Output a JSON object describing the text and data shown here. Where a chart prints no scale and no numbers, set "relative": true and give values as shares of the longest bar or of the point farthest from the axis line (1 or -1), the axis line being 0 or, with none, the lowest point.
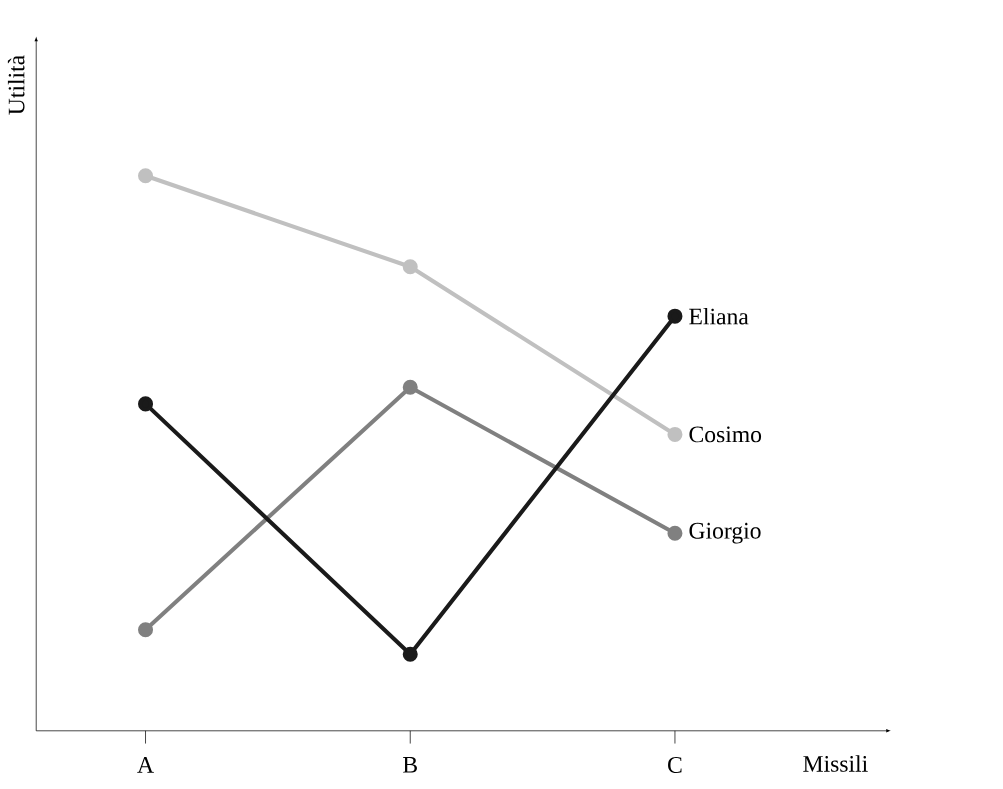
{
  "chart_data": {
    "type": "line",
    "relative": true,
    "xlabel": "Missili",
    "ylabel": "Utilità",
    "categories": [
      "A",
      "B",
      "C"
    ],
    "series": [
      {
        "name": "Cosimo",
        "color": "#c0c0c0",
        "values": [
          1.0,
          0.836,
          0.534
        ]
      },
      {
        "name": "Giorgio",
        "color": "#808080",
        "values": [
          0.182,
          0.619,
          0.356
        ]
      },
      {
        "name": "Eliana",
        "color": "#1a1a1a",
        "values": [
          0.589,
          0.138,
          0.747
        ]
      }
    ],
    "marker": "circle",
    "line_style": "solid",
    "legend": false,
    "grid": false
  }
}
